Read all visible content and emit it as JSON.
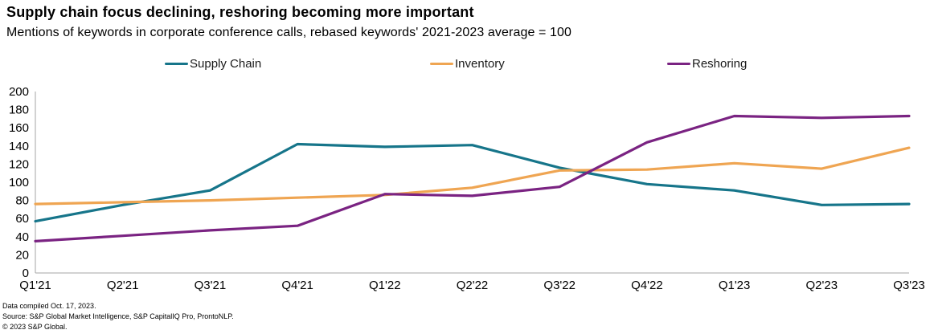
{
  "header": {
    "title": "Supply chain focus declining, reshoring becoming more important",
    "subtitle": "Mentions of keywords in corporate conference calls, rebased keywords' 2021-2023 average = 100"
  },
  "legend": {
    "items": [
      {
        "label": "Supply Chain",
        "color": "#16758A"
      },
      {
        "label": "Inventory",
        "color": "#EFA552"
      },
      {
        "label": "Reshoring",
        "color": "#7A2382"
      }
    ]
  },
  "chart_data": {
    "type": "line",
    "categories": [
      "Q1'21",
      "Q2'21",
      "Q3'21",
      "Q4'21",
      "Q1'22",
      "Q2'22",
      "Q3'22",
      "Q4'22",
      "Q1'23",
      "Q2'23",
      "Q3'23"
    ],
    "series": [
      {
        "name": "Supply Chain",
        "color": "#16758A",
        "values": [
          57,
          75,
          91,
          142,
          139,
          141,
          116,
          98,
          91,
          75,
          76
        ]
      },
      {
        "name": "Inventory",
        "color": "#EFA552",
        "values": [
          76,
          78,
          80,
          83,
          86,
          94,
          113,
          114,
          121,
          115,
          138
        ]
      },
      {
        "name": "Reshoring",
        "color": "#7A2382",
        "values": [
          35,
          41,
          47,
          52,
          87,
          85,
          95,
          144,
          173,
          171,
          173
        ]
      }
    ],
    "title": "Supply chain focus declining, reshoring becoming more important",
    "xlabel": "",
    "ylabel": "",
    "ylim": [
      0,
      200
    ],
    "ytick_step": 20,
    "grid": false,
    "legend_position": "top",
    "axis_color": "#a6a6a6",
    "tick_label_color": "#000000"
  },
  "footer": {
    "lines": [
      "Data compiled Oct. 17, 2023.",
      "Source: S&P Global Market Intelligence, S&P CapitalIQ Pro, ProntoNLP.",
      "© 2023 S&P Global."
    ]
  }
}
